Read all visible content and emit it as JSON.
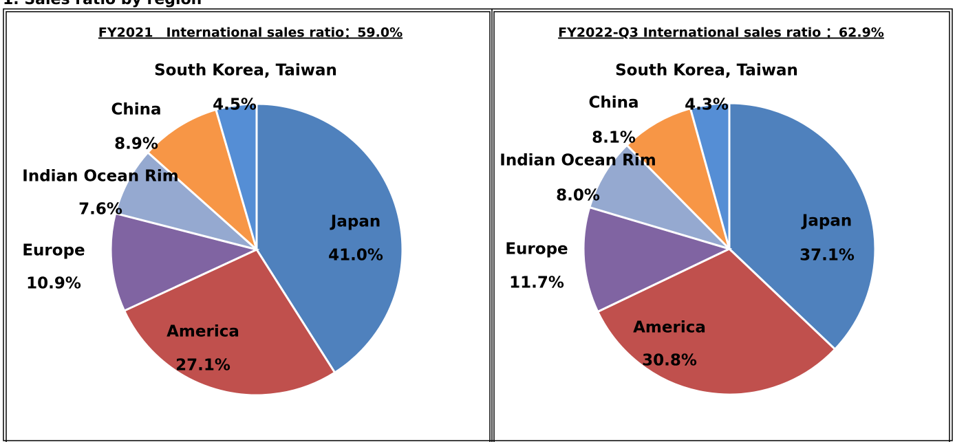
{
  "heading": "1. Sales ratio by region",
  "chart_data": [
    {
      "type": "pie",
      "title": "FY2021　International sales ratio：59.0%",
      "categories": [
        "Japan",
        "America",
        "Europe",
        "Indian Ocean Rim",
        "China",
        "South Korea, Taiwan"
      ],
      "values": [
        41.0,
        27.1,
        10.9,
        7.6,
        8.9,
        4.5
      ],
      "value_labels": [
        "41.0%",
        "27.1%",
        "10.9%",
        "7.6%",
        "8.9%",
        "4.5%"
      ],
      "colors": [
        "#4f81bd",
        "#c0504d",
        "#8064a2",
        "#95a9d0",
        "#f79646",
        "#558ed5"
      ]
    },
    {
      "type": "pie",
      "title": "FY2022-Q3 International sales ratio ：62.9%",
      "categories": [
        "Japan",
        "America",
        "Europe",
        "Indian Ocean Rim",
        "China",
        "South Korea, Taiwan"
      ],
      "values": [
        37.1,
        30.8,
        11.7,
        8.0,
        8.1,
        4.3
      ],
      "value_labels": [
        "37.1%",
        "30.8%",
        "11.7%",
        "8.0%",
        "8.1%",
        "4.3%"
      ],
      "colors": [
        "#4f81bd",
        "#c0504d",
        "#8064a2",
        "#95a9d0",
        "#f79646",
        "#558ed5"
      ]
    }
  ]
}
